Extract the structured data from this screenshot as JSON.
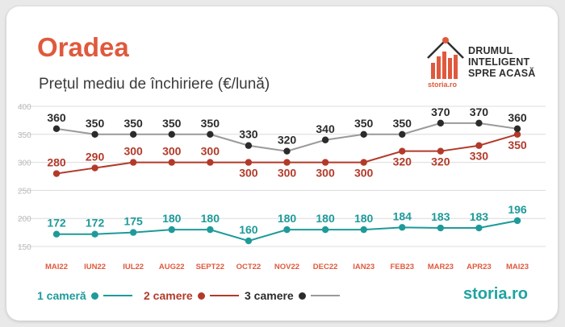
{
  "header": {
    "title": "Oradea",
    "subtitle": "Prețul mediu de închiriere (€/lună)"
  },
  "brand": {
    "line1": "DRUMUL",
    "line2": "INTELIGENT",
    "line3": "SPRE ACASĂ",
    "logo_small": "storia.ro"
  },
  "footer": {
    "logo": "storia.ro"
  },
  "colors": {
    "title": "#e0593c",
    "one_room": "#1e9a9a",
    "two_rooms": "#b23a2a",
    "three_rooms_dot": "#2b2b2b",
    "three_rooms_line": "#9a9a9a",
    "month_labels": "#e0593c"
  },
  "chart_data": {
    "type": "line",
    "categories": [
      "MAI22",
      "IUN22",
      "IUL22",
      "AUG22",
      "SEPT22",
      "OCT22",
      "NOV22",
      "DEC22",
      "IAN23",
      "FEB23",
      "MAR23",
      "APR23",
      "MAI23"
    ],
    "ylim": [
      150,
      400
    ],
    "yticks": [
      150,
      200,
      250,
      300,
      350,
      400
    ],
    "grid": true,
    "legend": "bottom",
    "series": [
      {
        "name": "1 cameră",
        "values": [
          172,
          172,
          175,
          180,
          180,
          160,
          180,
          180,
          180,
          184,
          183,
          183,
          196
        ]
      },
      {
        "name": "2 camere",
        "values": [
          280,
          290,
          300,
          300,
          300,
          300,
          300,
          300,
          300,
          320,
          320,
          330,
          350
        ]
      },
      {
        "name": "3 camere",
        "values": [
          360,
          350,
          350,
          350,
          350,
          330,
          320,
          340,
          350,
          350,
          370,
          370,
          360
        ]
      }
    ]
  }
}
